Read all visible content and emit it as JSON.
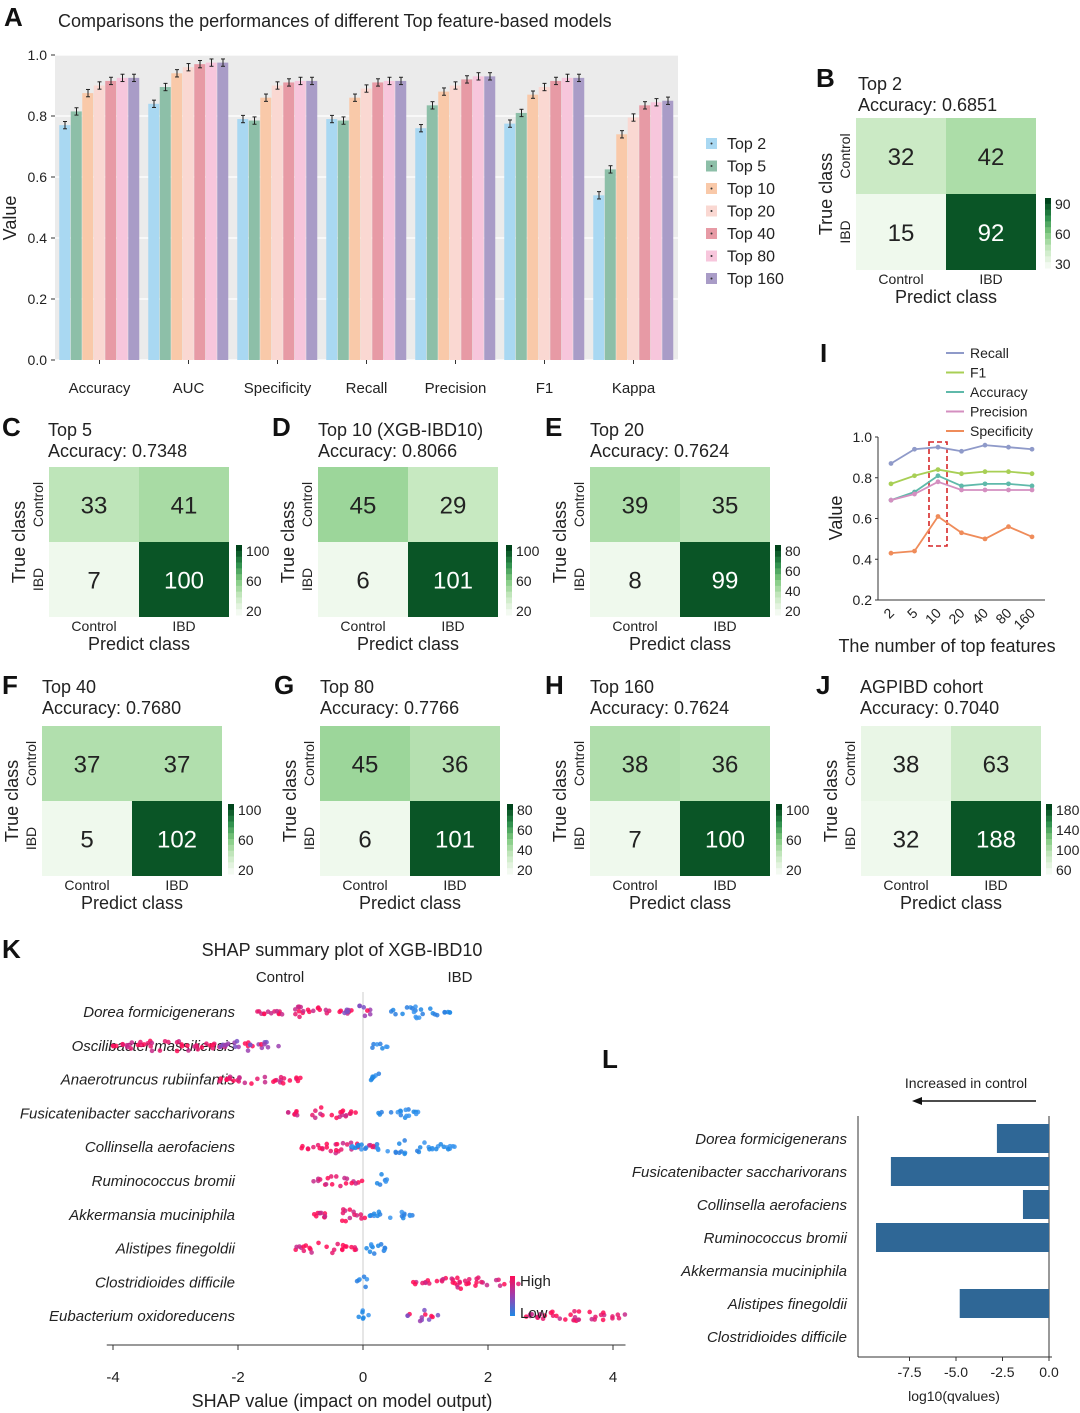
{
  "panels": {
    "A": {
      "label": "A",
      "title": "Comparisons the performances of different Top feature-based models",
      "ylabel": "Value",
      "yticks": [
        "0.0",
        "0.2",
        "0.4",
        "0.6",
        "0.8",
        "1.0"
      ],
      "legend": [
        {
          "label": "Top 2",
          "color": "#a9d8f2"
        },
        {
          "label": "Top 5",
          "color": "#8dbfa8"
        },
        {
          "label": "Top 10",
          "color": "#f9c9a9"
        },
        {
          "label": "Top 20",
          "color": "#fad8d2"
        },
        {
          "label": "Top 40",
          "color": "#e79aa5"
        },
        {
          "label": "Top 80",
          "color": "#f7c6dc"
        },
        {
          "label": "Top 160",
          "color": "#a99cc7"
        }
      ]
    },
    "I": {
      "label": "I",
      "ylabel": "Value",
      "xlabel": "The number of top features",
      "xticks": [
        "2",
        "5",
        "10",
        "20",
        "40",
        "80",
        "160"
      ],
      "yticks": [
        "0.2",
        "0.4",
        "0.6",
        "0.8",
        "1.0"
      ]
    },
    "K": {
      "label": "K",
      "title": "SHAP summary plot of XGB-IBD10",
      "left_label": "Control",
      "right_label": "IBD",
      "xlabel": "SHAP value (impact on model output)",
      "xticks": [
        "-4",
        "-2",
        "0",
        "2",
        "4"
      ],
      "legend_high": "High",
      "legend_low": "Low"
    },
    "L": {
      "label": "L",
      "arrow_label": "Increased in control",
      "xlabel": "log10(qvalues)",
      "xticks": [
        "-7.5",
        "-5.0",
        "-2.5",
        "0.0"
      ]
    }
  },
  "chart_data": [
    {
      "type": "bar",
      "panel": "A",
      "title": "Comparisons the performances of different Top feature-based models",
      "ylabel": "Value",
      "ylim": [
        0,
        1.0
      ],
      "categories": [
        "Accuracy",
        "AUC",
        "Specificity",
        "Recall",
        "Precision",
        "F1",
        "Kappa"
      ],
      "series": [
        {
          "name": "Top 2",
          "values": [
            0.77,
            0.84,
            0.79,
            0.79,
            0.76,
            0.775,
            0.54
          ]
        },
        {
          "name": "Top 5",
          "values": [
            0.815,
            0.895,
            0.785,
            0.785,
            0.835,
            0.81,
            0.625
          ]
        },
        {
          "name": "Top 10",
          "values": [
            0.875,
            0.94,
            0.86,
            0.86,
            0.88,
            0.87,
            0.74
          ]
        },
        {
          "name": "Top 20",
          "values": [
            0.9,
            0.96,
            0.9,
            0.89,
            0.9,
            0.895,
            0.795
          ]
        },
        {
          "name": "Top 40",
          "values": [
            0.915,
            0.97,
            0.91,
            0.91,
            0.92,
            0.915,
            0.835
          ]
        },
        {
          "name": "Top 80",
          "values": [
            0.925,
            0.975,
            0.915,
            0.915,
            0.93,
            0.925,
            0.845
          ]
        },
        {
          "name": "Top 160",
          "values": [
            0.925,
            0.975,
            0.915,
            0.915,
            0.93,
            0.925,
            0.85
          ]
        }
      ]
    },
    {
      "type": "heatmap",
      "panel": "B",
      "label": "B",
      "title": "Top 2",
      "subtitle": "Accuracy: 0.6851",
      "xlabel": "Predict class",
      "ylabel": "True class",
      "classes": [
        "Control",
        "IBD"
      ],
      "values": [
        [
          32,
          42
        ],
        [
          15,
          92
        ]
      ],
      "colorbar_ticks": [
        "90",
        "60",
        "30"
      ]
    },
    {
      "type": "heatmap",
      "panel": "C",
      "label": "C",
      "title": "Top 5",
      "subtitle": "Accuracy: 0.7348",
      "xlabel": "Predict class",
      "ylabel": "True class",
      "classes": [
        "Control",
        "IBD"
      ],
      "values": [
        [
          33,
          41
        ],
        [
          7,
          100
        ]
      ],
      "colorbar_ticks": [
        "100",
        "60",
        "20"
      ]
    },
    {
      "type": "heatmap",
      "panel": "D",
      "label": "D",
      "title": "Top 10 (XGB-IBD10)",
      "subtitle": "Accuracy: 0.8066",
      "xlabel": "Predict class",
      "ylabel": "True class",
      "classes": [
        "Control",
        "IBD"
      ],
      "values": [
        [
          45,
          29
        ],
        [
          6,
          101
        ]
      ],
      "colorbar_ticks": [
        "100",
        "60",
        "20"
      ]
    },
    {
      "type": "heatmap",
      "panel": "E",
      "label": "E",
      "title": "Top 20",
      "subtitle": "Accuracy: 0.7624",
      "xlabel": "Predict class",
      "ylabel": "True class",
      "classes": [
        "Control",
        "IBD"
      ],
      "values": [
        [
          39,
          35
        ],
        [
          8,
          99
        ]
      ],
      "colorbar_ticks": [
        "80",
        "60",
        "40",
        "20"
      ]
    },
    {
      "type": "heatmap",
      "panel": "F",
      "label": "F",
      "title": "Top 40",
      "subtitle": "Accuracy: 0.7680",
      "xlabel": "Predict class",
      "ylabel": "True class",
      "classes": [
        "Control",
        "IBD"
      ],
      "values": [
        [
          37,
          37
        ],
        [
          5,
          102
        ]
      ],
      "colorbar_ticks": [
        "100",
        "60",
        "20"
      ]
    },
    {
      "type": "heatmap",
      "panel": "G",
      "label": "G",
      "title": "Top 80",
      "subtitle": "Accuracy: 0.7766",
      "xlabel": "Predict class",
      "ylabel": "True class",
      "classes": [
        "Control",
        "IBD"
      ],
      "values": [
        [
          45,
          36
        ],
        [
          6,
          101
        ]
      ],
      "colorbar_ticks": [
        "80",
        "60",
        "40",
        "20"
      ]
    },
    {
      "type": "heatmap",
      "panel": "H",
      "label": "H",
      "title": "Top 160",
      "subtitle": "Accuracy: 0.7624",
      "xlabel": "Predict class",
      "ylabel": "True class",
      "classes": [
        "Control",
        "IBD"
      ],
      "values": [
        [
          38,
          36
        ],
        [
          7,
          100
        ]
      ],
      "colorbar_ticks": [
        "100",
        "60",
        "20"
      ]
    },
    {
      "type": "heatmap",
      "panel": "J",
      "label": "J",
      "title": "AGPIBD cohort",
      "subtitle": "Accuracy: 0.7040",
      "xlabel": "Predict class",
      "ylabel": "True class",
      "classes": [
        "Control",
        "IBD"
      ],
      "values": [
        [
          38,
          63
        ],
        [
          32,
          188
        ]
      ],
      "colorbar_ticks": [
        "180",
        "140",
        "100",
        "60"
      ]
    },
    {
      "type": "line",
      "panel": "I",
      "x": [
        "2",
        "5",
        "10",
        "20",
        "40",
        "80",
        "160"
      ],
      "ylim": [
        0.2,
        1.0
      ],
      "xlabel": "The number of top features",
      "ylabel": "Value",
      "highlight_x": "10",
      "series": [
        {
          "name": "Recall",
          "color": "#8f9ac9",
          "values": [
            0.87,
            0.94,
            0.95,
            0.93,
            0.96,
            0.95,
            0.94
          ]
        },
        {
          "name": "F1",
          "color": "#a8cf55",
          "values": [
            0.77,
            0.81,
            0.84,
            0.82,
            0.83,
            0.83,
            0.82
          ]
        },
        {
          "name": "Accuracy",
          "color": "#5fb9aa",
          "values": [
            0.69,
            0.73,
            0.81,
            0.76,
            0.77,
            0.77,
            0.76
          ]
        },
        {
          "name": "Precision",
          "color": "#d48fc0",
          "values": [
            0.69,
            0.72,
            0.78,
            0.74,
            0.74,
            0.74,
            0.74
          ]
        },
        {
          "name": "Specificity",
          "color": "#ef8c5a",
          "values": [
            0.43,
            0.44,
            0.61,
            0.53,
            0.5,
            0.56,
            0.51
          ]
        }
      ]
    },
    {
      "type": "scatter",
      "panel": "K",
      "title": "SHAP summary plot of XGB-IBD10",
      "xlabel": "SHAP value (impact on model output)",
      "xlim": [
        -4,
        4
      ],
      "features": [
        "Dorea formicigenerans",
        "Oscilibacter massiliensis",
        "Anaerotruncus rubiinfantis",
        "Fusicatenibacter saccharivorans",
        "Collinsella aerofaciens",
        "Ruminococcus bromii",
        "Akkermansia muciniphila",
        "Alistipes finegoldii",
        "Clostridioides difficile",
        "Eubacterium oxidoreducens"
      ],
      "clusters": [
        [
          {
            "x0": -1.7,
            "x1": -0.2,
            "c": "high"
          },
          {
            "x0": -0.3,
            "x1": 0.2,
            "c": "mid"
          },
          {
            "x0": 0.4,
            "x1": 1.4,
            "c": "low"
          }
        ],
        [
          {
            "x0": -4.0,
            "x1": -2.2,
            "c": "high"
          },
          {
            "x0": -2.3,
            "x1": -1.3,
            "c": "mid"
          },
          {
            "x0": 0.1,
            "x1": 0.4,
            "c": "low"
          }
        ],
        [
          {
            "x0": -2.3,
            "x1": -1.0,
            "c": "high"
          },
          {
            "x0": 0.1,
            "x1": 0.4,
            "c": "low"
          }
        ],
        [
          {
            "x0": -1.2,
            "x1": -0.1,
            "c": "high"
          },
          {
            "x0": 0.2,
            "x1": 0.9,
            "c": "low"
          }
        ],
        [
          {
            "x0": -1.0,
            "x1": 0.2,
            "c": "high"
          },
          {
            "x0": -0.2,
            "x1": 1.5,
            "c": "low"
          }
        ],
        [
          {
            "x0": -0.8,
            "x1": 0.0,
            "c": "high"
          },
          {
            "x0": 0.2,
            "x1": 0.4,
            "c": "low"
          }
        ],
        [
          {
            "x0": -0.8,
            "x1": 0.2,
            "c": "high"
          },
          {
            "x0": 0.1,
            "x1": 0.8,
            "c": "low"
          }
        ],
        [
          {
            "x0": -1.1,
            "x1": -0.1,
            "c": "high"
          },
          {
            "x0": 0.0,
            "x1": 0.5,
            "c": "low"
          }
        ],
        [
          {
            "x0": 0.8,
            "x1": 2.5,
            "c": "high"
          },
          {
            "x0": -0.1,
            "x1": 0.1,
            "c": "low"
          }
        ],
        [
          {
            "x0": 2.6,
            "x1": 4.2,
            "c": "high"
          },
          {
            "x0": -0.1,
            "x1": 0.1,
            "c": "low"
          },
          {
            "x0": 0.7,
            "x1": 1.2,
            "c": "mid"
          }
        ]
      ]
    },
    {
      "type": "bar",
      "panel": "L",
      "orientation": "horizontal",
      "xlabel": "log10(qvalues)",
      "xlim": [
        -10,
        0
      ],
      "categories": [
        "Dorea formicigenerans",
        "Fusicatenibacter saccharivorans",
        "Collinsella aerofaciens",
        "Ruminococcus bromii",
        "Akkermansia muciniphila",
        "Alistipes finegoldii",
        "Clostridioides difficile"
      ],
      "values": [
        -2.8,
        -8.5,
        -1.4,
        -9.3,
        0,
        -4.8,
        0
      ]
    }
  ],
  "colors": {
    "heat_low": "#f3faf1",
    "heat_high": "#00441b",
    "bar_L": "#2f6796",
    "shap_high": "#ff0d57",
    "shap_low": "#1e88e5",
    "line_box": "#d62728"
  }
}
